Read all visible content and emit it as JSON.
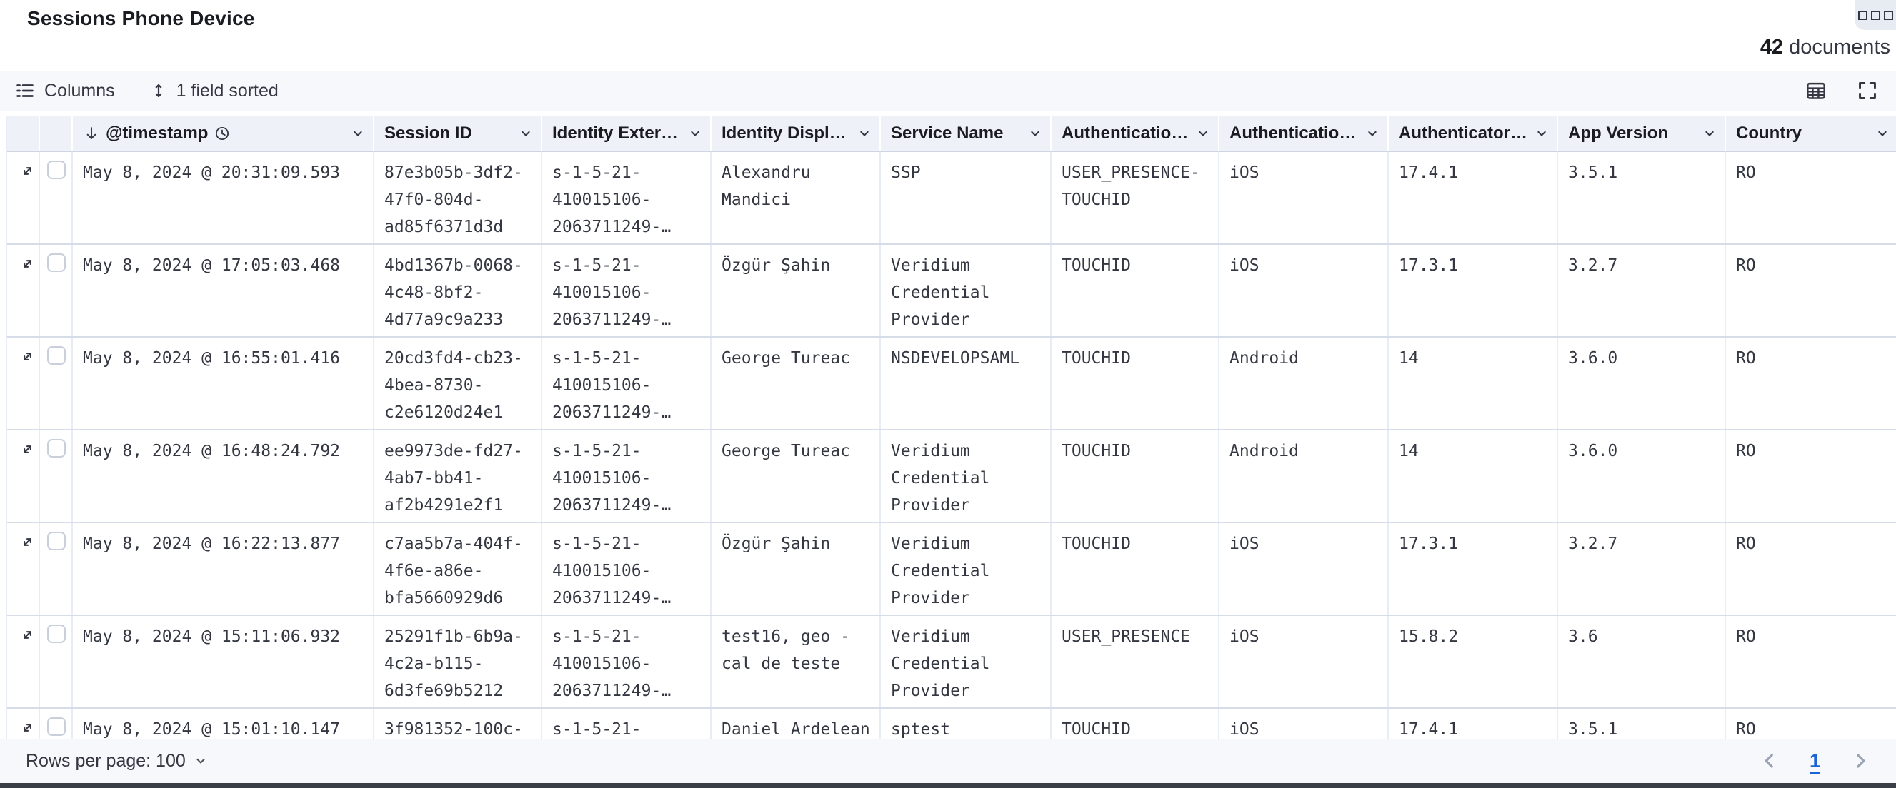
{
  "panel": {
    "title": "Sessions Phone Device"
  },
  "doc_count": {
    "value": "42",
    "label": "documents"
  },
  "toolbar": {
    "columns_label": "Columns",
    "sorted_label": "1 field sorted"
  },
  "icons": {
    "panel_options": "boxes-horizontal-icon",
    "columns": "list-icon",
    "sorted": "sort-arrows-icon",
    "display_options": "table-icon",
    "fullscreen": "fullscreen-icon",
    "sort_direction": "arrow-down-icon",
    "time_field": "clock-icon",
    "column_menu": "chevron-down-icon",
    "expand_row": "expand-icon",
    "prev_page": "chevron-left-icon",
    "next_page": "chevron-right-icon"
  },
  "grid": {
    "columns": [
      {
        "label": "@timestamp",
        "sorted": true,
        "time_field": true
      },
      {
        "label": "Session ID"
      },
      {
        "label": "Identity Exter…"
      },
      {
        "label": "Identity Displ…"
      },
      {
        "label": "Service Name"
      },
      {
        "label": "Authenticatio…"
      },
      {
        "label": "Authenticatio…"
      },
      {
        "label": "Authenticator…"
      },
      {
        "label": "App Version"
      },
      {
        "label": "Country"
      }
    ],
    "rows": [
      {
        "cells": [
          "May 8, 2024 @ 20:31:09.593",
          "87e3b05b-3df2-47f0-804d-ad85f6371d3d",
          "s-1-5-21-410015106-2063711249-…",
          "Alexandru Mandici",
          "SSP",
          "USER_PRESENCE-TOUCHID",
          "iOS",
          "17.4.1",
          "3.5.1",
          "RO"
        ]
      },
      {
        "cells": [
          "May 8, 2024 @ 17:05:03.468",
          "4bd1367b-0068-4c48-8bf2-4d77a9c9a233",
          "s-1-5-21-410015106-2063711249-…",
          "Özgür Şahin",
          "Veridium Credential Provider",
          "TOUCHID",
          "iOS",
          "17.3.1",
          "3.2.7",
          "RO"
        ]
      },
      {
        "cells": [
          "May 8, 2024 @ 16:55:01.416",
          "20cd3fd4-cb23-4bea-8730-c2e6120d24e1",
          "s-1-5-21-410015106-2063711249-…",
          "George Tureac",
          "NSDEVELOPSAML",
          "TOUCHID",
          "Android",
          "14",
          "3.6.0",
          "RO"
        ]
      },
      {
        "cells": [
          "May 8, 2024 @ 16:48:24.792",
          "ee9973de-fd27-4ab7-bb41-af2b4291e2f1",
          "s-1-5-21-410015106-2063711249-…",
          "George Tureac",
          "Veridium Credential Provider",
          "TOUCHID",
          "Android",
          "14",
          "3.6.0",
          "RO"
        ]
      },
      {
        "cells": [
          "May 8, 2024 @ 16:22:13.877",
          "c7aa5b7a-404f-4f6e-a86e-bfa5660929d6",
          "s-1-5-21-410015106-2063711249-…",
          "Özgür Şahin",
          "Veridium Credential Provider",
          "TOUCHID",
          "iOS",
          "17.3.1",
          "3.2.7",
          "RO"
        ]
      },
      {
        "cells": [
          "May 8, 2024 @ 15:11:06.932",
          "25291f1b-6b9a-4c2a-b115-6d3fe69b5212",
          "s-1-5-21-410015106-2063711249-…",
          "test16, geo - cal de teste",
          "Veridium Credential Provider",
          "USER_PRESENCE",
          "iOS",
          "15.8.2",
          "3.6",
          "RO"
        ]
      },
      {
        "cells": [
          "May 8, 2024 @ 15:01:10.147",
          "3f981352-100c-",
          "s-1-5-21-",
          "Daniel Ardelean",
          "sptest",
          "TOUCHID",
          "iOS",
          "17.4.1",
          "3.5.1",
          "RO"
        ]
      }
    ]
  },
  "footer": {
    "rows_per_page_label": "Rows per page: 100",
    "page": "1"
  },
  "colors": {
    "accent_blue": "#1c64d6",
    "header_bg": "#eef1f8",
    "toolbar_bg": "#f6f8fc",
    "row_border": "#d6dce8",
    "text": "#343741"
  }
}
